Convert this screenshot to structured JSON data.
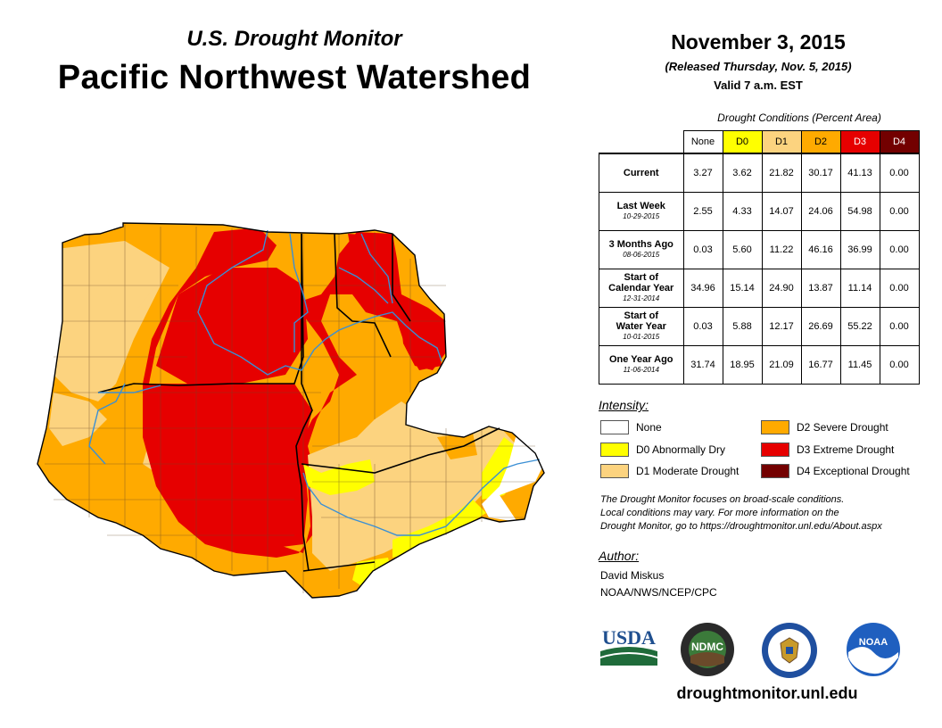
{
  "header": {
    "subtitle": "U.S. Drought Monitor",
    "title": "Pacific Northwest Watershed",
    "date": "November 3, 2015",
    "released": "(Released Thursday, Nov. 5, 2015)",
    "valid": "Valid 7 a.m. EST"
  },
  "table": {
    "caption": "Drought Conditions (Percent Area)",
    "columns": [
      "None",
      "D0",
      "D1",
      "D2",
      "D3",
      "D4"
    ],
    "column_colors": [
      "#ffffff",
      "#ffff00",
      "#fcd37f",
      "#ffaa00",
      "#e60000",
      "#730000"
    ],
    "rows": [
      {
        "label": "Current",
        "label2": "",
        "date": "",
        "values": [
          "3.27",
          "3.62",
          "21.82",
          "30.17",
          "41.13",
          "0.00"
        ]
      },
      {
        "label": "Last Week",
        "label2": "",
        "date": "10-29-2015",
        "values": [
          "2.55",
          "4.33",
          "14.07",
          "24.06",
          "54.98",
          "0.00"
        ]
      },
      {
        "label": "3 Months Ago",
        "label2": "",
        "date": "08-06-2015",
        "values": [
          "0.03",
          "5.60",
          "11.22",
          "46.16",
          "36.99",
          "0.00"
        ]
      },
      {
        "label": "Start of",
        "label2": "Calendar Year",
        "date": "12-31-2014",
        "values": [
          "34.96",
          "15.14",
          "24.90",
          "13.87",
          "11.14",
          "0.00"
        ]
      },
      {
        "label": "Start of",
        "label2": "Water Year",
        "date": "10-01-2015",
        "values": [
          "0.03",
          "5.88",
          "12.17",
          "26.69",
          "55.22",
          "0.00"
        ]
      },
      {
        "label": "One Year Ago",
        "label2": "",
        "date": "11-06-2014",
        "values": [
          "31.74",
          "18.95",
          "21.09",
          "16.77",
          "11.45",
          "0.00"
        ]
      }
    ]
  },
  "legend": {
    "title": "Intensity:",
    "items": [
      {
        "label": "None",
        "color": "#ffffff"
      },
      {
        "label": "D0 Abnormally Dry",
        "color": "#ffff00"
      },
      {
        "label": "D1 Moderate Drought",
        "color": "#fcd37f"
      },
      {
        "label": "D2 Severe Drought",
        "color": "#ffaa00"
      },
      {
        "label": "D3 Extreme Drought",
        "color": "#e60000"
      },
      {
        "label": "D4 Exceptional Drought",
        "color": "#730000"
      }
    ]
  },
  "disclaimer": {
    "line1": "The Drought Monitor focuses on broad-scale conditions.",
    "line2": "Local conditions may vary. For more information on the",
    "line3": "Drought Monitor, go to https://droughtmonitor.unl.edu/About.aspx"
  },
  "author": {
    "title": "Author:",
    "name": "David Miskus",
    "org": "NOAA/NWS/NCEP/CPC"
  },
  "logos": {
    "usda": "USDA",
    "ndmc": "NDMC",
    "noaa": "NOAA"
  },
  "website": "droughtmonitor.unl.edu"
}
